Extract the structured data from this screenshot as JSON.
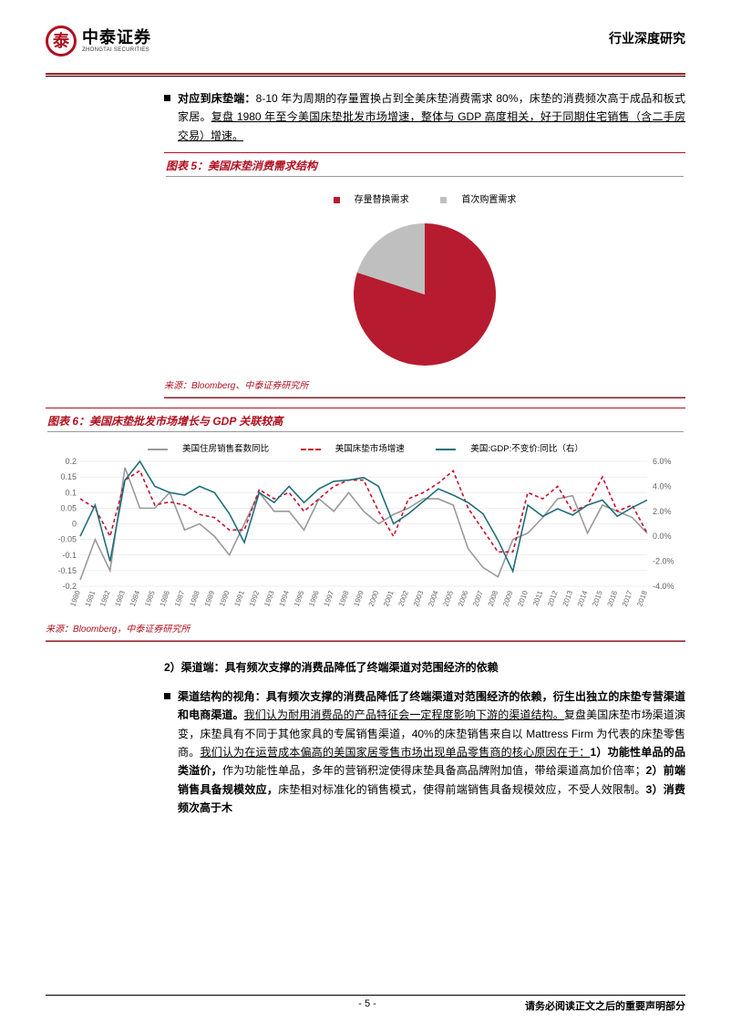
{
  "header": {
    "logo_cn": "中泰证券",
    "logo_en": "ZHONGTAI SECURITIES",
    "title": "行业深度研究"
  },
  "para1": {
    "lead_bold": "对应到床垫端：",
    "body": "8-10 年为周期的存量置换占到全美床垫消费需求 80%，床垫的消费频次高于成品和板式家居。",
    "ul": "复盘 1980 年至今美国床垫批发市场增速，整体与 GDP 高度相关，好于同期住宅销售（含二手房交易）增速。"
  },
  "chart5": {
    "title": "图表 5：美国床垫消费需求结构",
    "legend": [
      {
        "label": "存量替换需求",
        "color": "#b71b2f"
      },
      {
        "label": "首次购置需求",
        "color": "#bfbfbf"
      }
    ],
    "type": "pie",
    "slices": [
      {
        "label": "存量替换需求",
        "value": 80,
        "color": "#b71b2f"
      },
      {
        "label": "首次购置需求",
        "value": 20,
        "color": "#bfbfbf"
      }
    ],
    "radius": 78,
    "background": "#ffffff",
    "source": "来源：Bloomberg、中泰证券研究所"
  },
  "chart6": {
    "title": "图表 6：美国床垫批发市场增长与 GDP 关联较高",
    "type": "line",
    "series": [
      {
        "name": "美国住房销售套数同比",
        "color": "#9a9a9a",
        "dash": false,
        "axis": "left"
      },
      {
        "name": "美国床垫市场增速",
        "color": "#c8102e",
        "dash": true,
        "axis": "left"
      },
      {
        "name": "美国:GDP:不变价:同比（右）",
        "color": "#1f6f7a",
        "dash": false,
        "axis": "right"
      }
    ],
    "years": [
      "1980",
      "1981",
      "1982",
      "1983",
      "1984",
      "1985",
      "1986",
      "1987",
      "1988",
      "1989",
      "1990",
      "1991",
      "1992",
      "1993",
      "1994",
      "1995",
      "1996",
      "1997",
      "1998",
      "1999",
      "2000",
      "2001",
      "2002",
      "2003",
      "2004",
      "2005",
      "2006",
      "2007",
      "2008",
      "2009",
      "2010",
      "2011",
      "2012",
      "2013",
      "2014",
      "2015",
      "2016",
      "2017",
      "2018"
    ],
    "left_axis": {
      "min": -0.2,
      "max": 0.2,
      "ticks": [
        -0.2,
        -0.15,
        -0.1,
        -0.05,
        0,
        0.05,
        0.1,
        0.15,
        0.2
      ],
      "fontsize": 9,
      "color": "#666666"
    },
    "right_axis": {
      "min": -4.0,
      "max": 6.0,
      "ticks": [
        -4.0,
        -2.0,
        0.0,
        2.0,
        4.0,
        6.0
      ],
      "fmt": "%",
      "fontsize": 9,
      "color": "#666666"
    },
    "housing": [
      -0.18,
      -0.05,
      -0.15,
      0.18,
      0.05,
      0.05,
      0.1,
      -0.02,
      0.0,
      -0.04,
      -0.1,
      0.0,
      0.1,
      0.04,
      0.04,
      -0.02,
      0.08,
      0.04,
      0.1,
      0.04,
      0.0,
      0.03,
      0.05,
      0.08,
      0.08,
      0.06,
      -0.08,
      -0.14,
      -0.17,
      -0.05,
      -0.03,
      0.02,
      0.08,
      0.09,
      -0.03,
      0.06,
      0.04,
      0.02,
      -0.03
    ],
    "mattress": [
      0.08,
      0.05,
      -0.04,
      0.14,
      0.17,
      0.06,
      0.07,
      0.06,
      0.03,
      0.02,
      -0.02,
      -0.02,
      0.11,
      0.08,
      0.1,
      0.04,
      0.08,
      0.12,
      0.14,
      0.14,
      0.04,
      -0.04,
      0.08,
      0.1,
      0.13,
      0.17,
      0.05,
      -0.02,
      -0.09,
      -0.09,
      0.1,
      0.08,
      0.12,
      0.04,
      0.06,
      0.15,
      0.04,
      0.06,
      -0.03
    ],
    "gdp": [
      0.0,
      2.5,
      -2.0,
      4.5,
      6.0,
      4.0,
      3.5,
      3.3,
      4.0,
      3.5,
      1.8,
      -0.5,
      3.5,
      2.7,
      4.0,
      2.7,
      3.8,
      4.4,
      4.5,
      4.7,
      4.0,
      1.0,
      1.8,
      2.8,
      3.8,
      3.3,
      2.7,
      1.8,
      -0.3,
      -2.8,
      2.5,
      1.6,
      2.2,
      1.7,
      2.5,
      2.9,
      1.6,
      2.3,
      2.9
    ],
    "grid_color": "#dddddd",
    "label_fontsize": 8,
    "source": "来源：Bloomberg，中泰证券研究所"
  },
  "section2": {
    "heading": "2）渠道端：具有频次支撑的消费品降低了终端渠道对范围经济的依赖"
  },
  "para2": {
    "lead_bold": "渠道结构的视角：具有频次支撑的消费品降低了终端渠道对范围经济的依赖，衍生出独立的床垫专营渠道和电商渠道。",
    "ul1": "我们认为耐用消费品的产品特征会一定程度影响下游的渠道结构。",
    "mid": "复盘美国床垫市场渠道演变，床垫具有不同于其他家具的专属销售渠道，40%的床垫销售来自以 Mattress Firm 为代表的床垫零售商。",
    "ul2": "我们认为在运营成本偏高的美国家居零售市场出现单品零售商的核心原因在于：",
    "p1_b": "1）功能性单品的品类溢价，",
    "p1": "作为功能性单品，多年的营销积淀使得床垫具备高品牌附加值，带给渠道高加价倍率；",
    "p2_b": "2）前端销售具备规模效应，",
    "p2": "床垫相对标准化的销售模式，使得前端销售具备规模效应，不受人效限制。",
    "p3_b": "3）消费频次高于木"
  },
  "footer": {
    "page": "- 5 -",
    "disclaim": "请务必阅读正文之后的重要声明部分"
  },
  "colors": {
    "brand": "#b01020",
    "accent": "#1f6f7a"
  }
}
